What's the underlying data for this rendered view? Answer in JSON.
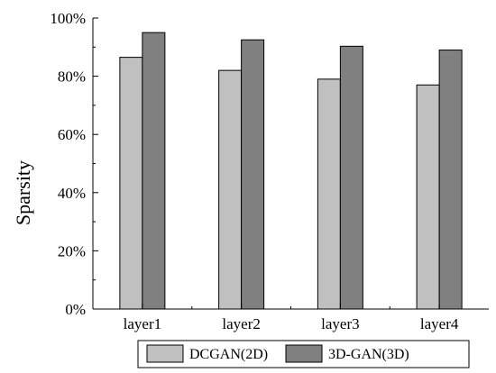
{
  "chart_data": {
    "type": "bar",
    "title": "",
    "xlabel": "",
    "ylabel": "Sparsity",
    "categories": [
      "layer1",
      "layer2",
      "layer3",
      "layer4"
    ],
    "ylim": [
      0,
      100
    ],
    "yticks": [
      0,
      20,
      40,
      60,
      80,
      100
    ],
    "ytick_labels": [
      "0%",
      "20%",
      "40%",
      "60%",
      "80%",
      "100%"
    ],
    "series": [
      {
        "name": "DCGAN(2D)",
        "values": [
          86.5,
          82.0,
          79.0,
          77.0
        ],
        "color": "#c0c0c0"
      },
      {
        "name": "3D-GAN(3D)",
        "values": [
          95.0,
          92.5,
          90.3,
          89.0
        ],
        "color": "#808080"
      }
    ],
    "legend": "bottom",
    "grid": false
  }
}
